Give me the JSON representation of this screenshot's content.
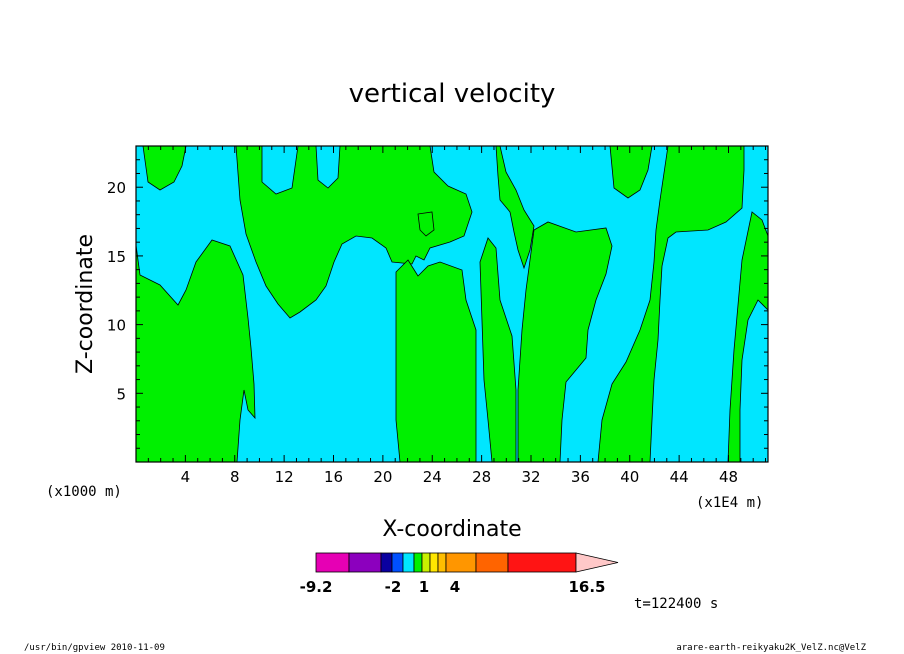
{
  "chart_data": {
    "type": "contour",
    "title": "vertical velocity",
    "xlabel": "X-coordinate",
    "ylabel": "Z-coordinate",
    "x_unit": "(x1000 m)",
    "x_multiplier": "(x1E4 m)",
    "xlim": [
      0,
      51.2
    ],
    "ylim": [
      0,
      23
    ],
    "x_ticks": [
      "4",
      "8",
      "12",
      "16",
      "20",
      "24",
      "28",
      "32",
      "36",
      "40",
      "44",
      "48"
    ],
    "y_ticks": [
      "5",
      "10",
      "15",
      "20"
    ],
    "field_regions": [
      {
        "name": "",
        "value_range": [
          -2,
          0
        ],
        "color": "#00e6ff"
      },
      {
        "name": "",
        "value_range": [
          0,
          1
        ],
        "color": "#00f000"
      }
    ],
    "colorbar": {
      "levels": [
        "-9.2",
        "-2",
        "1",
        "4",
        "16.5"
      ],
      "colors": [
        "#e600b4",
        "#8c00be",
        "#0a00a0",
        "#0050ff",
        "#00e6ff",
        "#00f000",
        "#c8f000",
        "#ffe600",
        "#ffbe00",
        "#ff9600",
        "#ff6400",
        "#ff1414",
        "#ff8080",
        "#ffc8c8"
      ]
    },
    "time_label": "t=122400 s"
  },
  "footer": {
    "left": "/usr/bin/gpview   2010-11-09",
    "right": "arare-earth-reikyaku2K_VelZ.nc@VelZ"
  }
}
